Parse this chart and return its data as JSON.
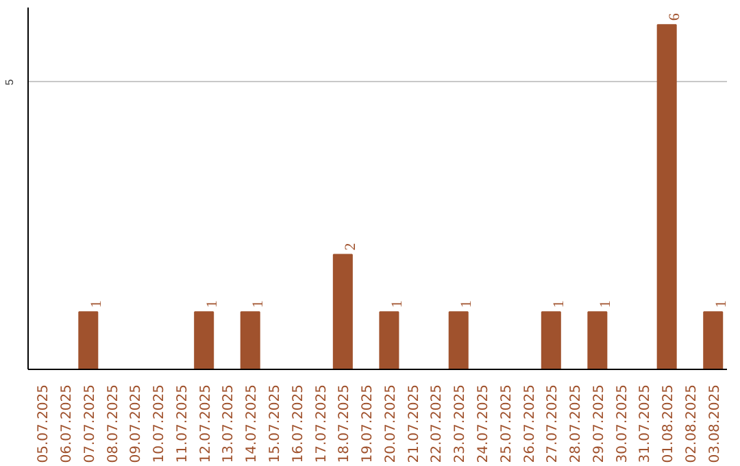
{
  "chart_data": {
    "type": "bar",
    "categories": [
      "05.07.2025",
      "06.07.2025",
      "07.07.2025",
      "08.07.2025",
      "09.07.2025",
      "10.07.2025",
      "11.07.2025",
      "12.07.2025",
      "13.07.2025",
      "14.07.2025",
      "15.07.2025",
      "16.07.2025",
      "17.07.2025",
      "18.07.2025",
      "19.07.2025",
      "20.07.2025",
      "21.07.2025",
      "22.07.2025",
      "23.07.2025",
      "24.07.2025",
      "25.07.2025",
      "26.07.2025",
      "27.07.2025",
      "28.07.2025",
      "29.07.2025",
      "30.07.2025",
      "31.07.2025",
      "01.08.2025",
      "02.08.2025",
      "03.08.2025"
    ],
    "values": [
      0,
      0,
      1,
      0,
      0,
      0,
      0,
      1,
      0,
      1,
      0,
      0,
      0,
      2,
      0,
      1,
      0,
      0,
      1,
      0,
      0,
      0,
      1,
      0,
      1,
      0,
      0,
      6,
      0,
      1
    ],
    "value_labels": [
      null,
      null,
      "1",
      null,
      null,
      null,
      null,
      "1",
      null,
      "1",
      null,
      null,
      null,
      "2",
      null,
      "1",
      null,
      null,
      "1",
      null,
      null,
      null,
      "1",
      null,
      "1",
      null,
      null,
      "6",
      null,
      "1"
    ],
    "color": "#a0522d",
    "ylim": [
      0,
      6.3
    ],
    "yticks": [
      5
    ],
    "grid": "y"
  }
}
